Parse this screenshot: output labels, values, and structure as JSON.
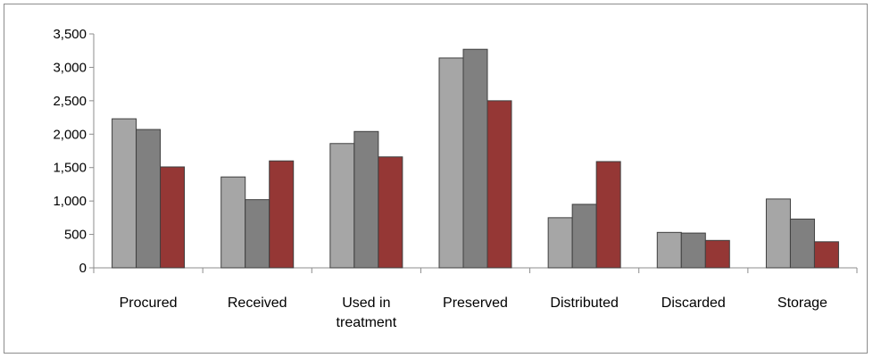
{
  "chart_data": {
    "type": "bar",
    "title": "",
    "xlabel": "",
    "ylabel": "",
    "ylim": [
      0,
      3500
    ],
    "yticks": [
      0,
      500,
      1000,
      1500,
      2000,
      2500,
      3000,
      3500
    ],
    "ytick_labels": [
      "0",
      "500",
      "1,000",
      "1,500",
      "2,000",
      "2,500",
      "3,000",
      "3,500"
    ],
    "categories": [
      [
        "Procured"
      ],
      [
        "Received"
      ],
      [
        "Used in",
        "treatment"
      ],
      [
        "Preserved"
      ],
      [
        "Distributed"
      ],
      [
        "Discarded"
      ],
      [
        "Storage"
      ]
    ],
    "series": [
      {
        "color": "#a6a6a6",
        "values": [
          2230,
          1360,
          1860,
          3140,
          750,
          530,
          1030
        ]
      },
      {
        "color": "#808080",
        "values": [
          2070,
          1020,
          2040,
          3270,
          950,
          520,
          730
        ]
      },
      {
        "color": "#953735",
        "values": [
          1510,
          1600,
          1660,
          2500,
          1590,
          410,
          390
        ]
      }
    ],
    "grid": false,
    "legend": "none"
  }
}
